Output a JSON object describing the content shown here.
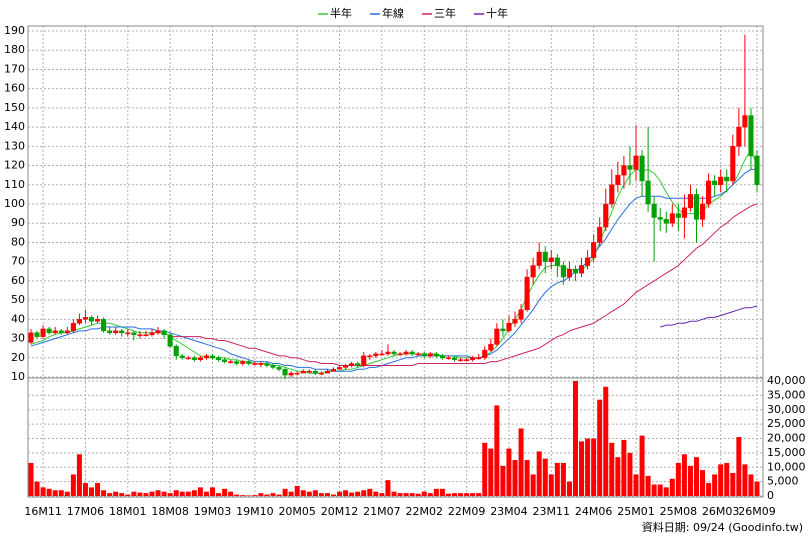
{
  "chart_data": {
    "type": "candlestick",
    "legend": "top",
    "grid": true,
    "source": "資料日期: 09/24 (Goodinfo.tw)",
    "up_color": "#ff0000",
    "down_color": "#00a000",
    "categories": [
      null,
      null,
      "16M11",
      null,
      null,
      null,
      null,
      null,
      null,
      "17M06",
      null,
      null,
      null,
      null,
      null,
      null,
      "18M01",
      null,
      null,
      null,
      null,
      null,
      null,
      "18M08",
      null,
      null,
      null,
      null,
      null,
      null,
      "19M03",
      null,
      null,
      null,
      null,
      null,
      null,
      "19M10",
      null,
      null,
      null,
      null,
      null,
      null,
      "20M05",
      null,
      null,
      null,
      null,
      null,
      null,
      "20M12",
      null,
      null,
      null,
      null,
      null,
      null,
      "21M07",
      null,
      null,
      null,
      null,
      null,
      null,
      "22M02",
      null,
      null,
      null,
      null,
      null,
      null,
      "22M09",
      null,
      null,
      null,
      null,
      null,
      null,
      "23M04",
      null,
      null,
      null,
      null,
      null,
      null,
      "23M11",
      null,
      null,
      null,
      null,
      null,
      null,
      "24M06",
      null,
      null,
      null,
      null,
      null,
      null,
      "25M01",
      null,
      null,
      null,
      null,
      null,
      null,
      "25M08",
      null,
      null,
      null,
      null,
      null,
      null,
      "26M03",
      null,
      null,
      null,
      null,
      null,
      "26M09"
    ],
    "open": [
      28,
      33,
      31,
      35,
      33,
      34,
      33,
      34,
      38,
      40,
      41,
      39,
      40,
      34,
      33,
      34,
      33,
      33,
      32,
      32,
      32,
      33,
      34,
      32,
      26,
      21,
      20,
      20,
      19,
      20,
      21,
      20,
      19,
      18,
      18,
      17,
      18,
      17,
      17,
      17,
      16,
      15,
      14,
      11,
      12,
      12,
      13,
      13,
      12,
      12,
      13,
      14,
      15,
      16,
      17,
      16,
      21,
      21,
      22,
      22,
      23,
      22,
      22,
      23,
      22,
      22,
      21,
      22,
      21,
      20,
      20,
      19,
      19,
      19,
      20,
      20,
      24,
      27,
      35,
      34,
      38,
      40,
      45,
      62,
      68,
      75,
      70,
      72,
      68,
      62,
      66,
      64,
      68,
      72,
      80,
      88,
      100,
      110,
      115,
      120,
      118,
      125,
      112,
      100,
      93,
      92,
      90,
      95,
      93,
      98,
      105,
      92,
      100,
      112,
      110,
      114,
      112,
      130,
      140,
      146,
      125
    ],
    "high": [
      35,
      34,
      37,
      36,
      36,
      35,
      36,
      40,
      43,
      45,
      42,
      42,
      41,
      36,
      36,
      35,
      35,
      34,
      34,
      34,
      35,
      36,
      35,
      33,
      27,
      22,
      21,
      21,
      21,
      22,
      22,
      21,
      20,
      19,
      19,
      19,
      19,
      18,
      18,
      18,
      17,
      16,
      15,
      13,
      13,
      14,
      14,
      14,
      13,
      14,
      15,
      16,
      17,
      18,
      18,
      23,
      22,
      23,
      24,
      27,
      24,
      23,
      24,
      24,
      23,
      23,
      23,
      23,
      22,
      21,
      21,
      20,
      20,
      21,
      22,
      26,
      30,
      38,
      40,
      42,
      44,
      48,
      66,
      72,
      80,
      78,
      76,
      74,
      70,
      70,
      68,
      72,
      76,
      84,
      93,
      108,
      118,
      122,
      125,
      130,
      141,
      128,
      140,
      104,
      98,
      96,
      100,
      100,
      105,
      110,
      108,
      104,
      116,
      115,
      118,
      118,
      136,
      150,
      188,
      150,
      128
    ],
    "low": [
      27,
      30,
      30,
      32,
      32,
      32,
      32,
      33,
      37,
      38,
      37,
      38,
      33,
      32,
      32,
      31,
      31,
      29,
      30,
      31,
      31,
      32,
      30,
      25,
      19,
      19,
      19,
      18,
      18,
      19,
      19,
      18,
      17,
      17,
      16,
      16,
      16,
      16,
      15,
      15,
      14,
      13,
      9,
      10,
      11,
      12,
      12,
      11,
      11,
      12,
      13,
      14,
      14,
      15,
      15,
      15,
      19,
      20,
      21,
      21,
      21,
      21,
      21,
      21,
      21,
      20,
      20,
      20,
      19,
      19,
      18,
      18,
      18,
      18,
      19,
      19,
      23,
      26,
      31,
      33,
      36,
      38,
      44,
      58,
      66,
      64,
      66,
      62,
      58,
      60,
      60,
      62,
      66,
      70,
      78,
      86,
      98,
      106,
      108,
      110,
      112,
      104,
      96,
      70,
      86,
      85,
      88,
      86,
      82,
      96,
      80,
      88,
      98,
      104,
      106,
      106,
      110,
      125,
      130,
      118,
      106
    ],
    "close": [
      33,
      31,
      35,
      33,
      34,
      33,
      34,
      38,
      40,
      41,
      39,
      40,
      34,
      33,
      34,
      33,
      33,
      32,
      32,
      32,
      33,
      34,
      32,
      26,
      21,
      20,
      20,
      19,
      20,
      21,
      20,
      19,
      18,
      18,
      17,
      18,
      17,
      17,
      17,
      16,
      15,
      14,
      11,
      12,
      12,
      13,
      13,
      12,
      12,
      13,
      14,
      15,
      16,
      17,
      16,
      21,
      21,
      22,
      22,
      23,
      22,
      22,
      23,
      22,
      22,
      21,
      22,
      21,
      20,
      20,
      19,
      19,
      19,
      20,
      20,
      24,
      27,
      35,
      34,
      38,
      40,
      45,
      62,
      68,
      75,
      70,
      72,
      68,
      62,
      66,
      64,
      68,
      72,
      80,
      88,
      100,
      110,
      115,
      120,
      118,
      125,
      112,
      100,
      93,
      92,
      90,
      95,
      93,
      98,
      105,
      92,
      100,
      112,
      110,
      114,
      112,
      130,
      140,
      146,
      125,
      110
    ],
    "ylim": [
      10,
      190
    ],
    "yticks": [
      10,
      20,
      30,
      40,
      50,
      60,
      70,
      80,
      90,
      100,
      110,
      120,
      130,
      140,
      150,
      160,
      170,
      180,
      190
    ],
    "series": [
      {
        "name": "半年",
        "color": "#33cc33",
        "values": [
          27,
          28,
          29,
          31,
          32,
          33,
          33,
          34,
          35,
          36,
          37,
          38,
          38,
          38,
          37,
          36,
          35,
          34,
          33,
          33,
          33,
          33,
          33,
          31,
          29,
          27,
          25,
          23,
          21,
          20,
          20,
          20,
          20,
          19,
          19,
          18,
          18,
          17,
          17,
          17,
          16,
          16,
          15,
          14,
          13,
          13,
          12,
          12,
          12,
          13,
          13,
          13,
          14,
          14,
          15,
          16,
          17,
          18,
          19,
          20,
          21,
          22,
          22,
          22,
          22,
          22,
          22,
          22,
          21,
          21,
          21,
          20,
          20,
          20,
          20,
          21,
          23,
          26,
          30,
          35,
          40,
          45,
          52,
          58,
          63,
          67,
          68,
          68,
          67,
          66,
          66,
          66,
          68,
          72,
          80,
          88,
          96,
          104,
          110,
          115,
          118,
          117,
          118,
          116,
          112,
          106,
          101,
          97,
          95,
          95,
          95,
          96,
          100,
          102,
          104,
          107,
          110,
          116,
          123,
          128,
          120
        ]
      },
      {
        "name": "年線",
        "color": "#2b6fe0",
        "values": [
          26,
          27,
          28,
          29,
          30,
          31,
          32,
          33,
          34,
          34,
          35,
          35,
          36,
          36,
          36,
          36,
          36,
          36,
          35,
          35,
          35,
          34,
          34,
          33,
          32,
          31,
          30,
          29,
          28,
          27,
          26,
          25,
          24,
          22,
          21,
          20,
          19,
          18,
          18,
          18,
          17,
          17,
          16,
          16,
          15,
          15,
          15,
          14,
          14,
          14,
          13,
          13,
          13,
          13,
          14,
          14,
          15,
          15,
          16,
          17,
          18,
          19,
          20,
          20,
          21,
          21,
          21,
          21,
          21,
          21,
          21,
          21,
          21,
          20,
          20,
          21,
          22,
          24,
          27,
          30,
          33,
          37,
          41,
          45,
          50,
          54,
          57,
          59,
          60,
          62,
          65,
          67,
          70,
          74,
          78,
          82,
          87,
          92,
          96,
          100,
          103,
          104,
          104,
          104,
          104,
          103,
          103,
          103,
          103,
          103,
          103,
          103,
          103,
          104,
          105,
          107,
          110,
          113,
          116,
          118,
          118
        ]
      },
      {
        "name": "三年",
        "color": "#cc2266",
        "values": [
          null,
          null,
          null,
          null,
          null,
          null,
          null,
          null,
          null,
          null,
          null,
          null,
          null,
          null,
          null,
          null,
          null,
          null,
          null,
          null,
          null,
          null,
          null,
          31,
          31,
          31,
          31,
          31,
          31,
          30,
          30,
          29,
          29,
          28,
          27,
          26,
          25,
          25,
          24,
          23,
          22,
          21,
          21,
          20,
          20,
          19,
          18,
          18,
          17,
          17,
          17,
          16,
          16,
          16,
          16,
          16,
          16,
          16,
          16,
          16,
          16,
          16,
          16,
          16,
          17,
          17,
          17,
          17,
          17,
          17,
          17,
          17,
          17,
          17,
          17,
          17,
          18,
          18,
          19,
          20,
          21,
          22,
          23,
          24,
          25,
          27,
          29,
          31,
          32,
          34,
          35,
          36,
          37,
          38,
          40,
          42,
          44,
          46,
          48,
          51,
          54,
          56,
          58,
          60,
          62,
          64,
          66,
          68,
          71,
          74,
          77,
          79,
          82,
          85,
          88,
          90,
          93,
          95,
          97,
          99,
          100
        ]
      },
      {
        "name": "十年",
        "color": "#6a22b0",
        "values": [
          null,
          null,
          null,
          null,
          null,
          null,
          null,
          null,
          null,
          null,
          null,
          null,
          null,
          null,
          null,
          null,
          null,
          null,
          null,
          null,
          null,
          null,
          null,
          null,
          null,
          null,
          null,
          null,
          null,
          null,
          null,
          null,
          null,
          null,
          null,
          null,
          null,
          null,
          null,
          null,
          null,
          null,
          null,
          null,
          null,
          null,
          null,
          null,
          null,
          null,
          null,
          null,
          null,
          null,
          null,
          null,
          null,
          null,
          null,
          null,
          null,
          null,
          null,
          null,
          null,
          null,
          null,
          null,
          null,
          null,
          null,
          null,
          null,
          null,
          null,
          null,
          null,
          null,
          null,
          null,
          null,
          null,
          null,
          null,
          null,
          null,
          null,
          null,
          null,
          null,
          null,
          null,
          null,
          null,
          null,
          null,
          null,
          null,
          null,
          null,
          null,
          null,
          null,
          null,
          36,
          37,
          37,
          38,
          38,
          39,
          39,
          40,
          41,
          41,
          42,
          43,
          44,
          45,
          46,
          46,
          47
        ]
      }
    ],
    "volume": {
      "color": "#ff0000",
      "values": [
        11500,
        5000,
        3000,
        2500,
        2000,
        2000,
        1500,
        7500,
        14500,
        4500,
        3000,
        4500,
        2000,
        1000,
        1500,
        1000,
        500,
        1500,
        1200,
        1000,
        1500,
        2000,
        1500,
        1000,
        2000,
        1500,
        1500,
        2000,
        3000,
        1500,
        3000,
        1000,
        2500,
        1500,
        500,
        300,
        200,
        300,
        1000,
        500,
        1000,
        500,
        2500,
        1500,
        3500,
        2000,
        1500,
        2000,
        1000,
        1000,
        500,
        1500,
        2000,
        1200,
        1500,
        2000,
        2500,
        1500,
        1000,
        5500,
        1500,
        1000,
        1000,
        1000,
        800,
        1500,
        1000,
        2500,
        2500,
        800,
        1000,
        1000,
        1000,
        1000,
        1000,
        18500,
        16500,
        31500,
        10500,
        16500,
        12500,
        23500,
        12500,
        7500,
        15500,
        13000,
        7500,
        11500,
        11500,
        5000,
        40000,
        19000,
        20000,
        20000,
        33500,
        38000,
        18500,
        13500,
        19500,
        15000,
        7500,
        21000,
        7000,
        4000,
        4000,
        3000,
        6000,
        11500,
        14500,
        10500,
        13500,
        9000,
        4500,
        7500,
        11000,
        11500,
        8000,
        20500,
        11000,
        7500,
        5000
      ],
      "ylim": [
        0,
        40000
      ],
      "yticks": [
        0,
        {
          "value": 5000,
          "label": "5,000"
        },
        {
          "value": 10000,
          "label": "10,000"
        },
        {
          "value": 15000,
          "label": "15,000"
        },
        {
          "value": 20000,
          "label": "20,000"
        },
        {
          "value": 25000,
          "label": "25,000"
        },
        {
          "value": 30000,
          "label": "30,000"
        },
        {
          "value": 35000,
          "label": "35,000"
        },
        {
          "value": 40000,
          "label": "40,000"
        }
      ]
    }
  }
}
